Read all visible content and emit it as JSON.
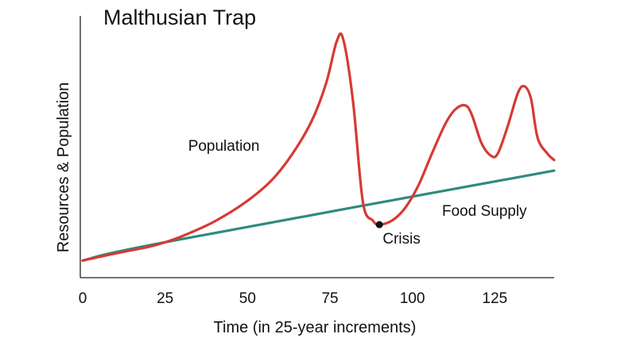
{
  "chart_data": {
    "type": "line",
    "title": "Malthusian Trap",
    "xlabel": "Time (in 25-year increments)",
    "ylabel": "Resources & Population",
    "xlim": [
      0,
      143
    ],
    "ylim": [
      0,
      100
    ],
    "x_ticks": [
      0,
      25,
      50,
      75,
      100,
      125
    ],
    "x_tick_labels": [
      "0",
      "25",
      "50",
      "75",
      "100",
      "125"
    ],
    "grid": false,
    "series": [
      {
        "name": "Population",
        "color": "#d63a33",
        "x": [
          0,
          10,
          20,
          25,
          30,
          40,
          50,
          58,
          65,
          70,
          74,
          77,
          79,
          82,
          85,
          88,
          90,
          94,
          98,
          102,
          106,
          110,
          113,
          116,
          118,
          121,
          124,
          126,
          129,
          132,
          134,
          136,
          138,
          141,
          143
        ],
        "y": [
          2.6,
          5.7,
          8.5,
          10.5,
          13.0,
          19.5,
          28.4,
          38.3,
          51.6,
          64.5,
          79.9,
          97.0,
          98.3,
          71.4,
          27.8,
          19.9,
          18.1,
          20.0,
          25.7,
          35.5,
          49.0,
          61.6,
          67.8,
          69.6,
          65.7,
          53.2,
          47.7,
          49.0,
          60.9,
          74.9,
          77.8,
          72.4,
          55.5,
          48.7,
          46.0
        ]
      },
      {
        "name": "Food Supply",
        "color": "#2e8b7f",
        "x": [
          0,
          25,
          143
        ],
        "y": [
          2.6,
          10.5,
          41.4
        ]
      }
    ],
    "annotations": [
      {
        "text": "Population",
        "x": 32,
        "y": 50
      },
      {
        "text": "Crisis",
        "x": 91,
        "y": 10
      },
      {
        "text": "Food Supply",
        "x": 109,
        "y": 22
      }
    ],
    "crisis_point": {
      "x": 90,
      "y": 18.1
    }
  }
}
